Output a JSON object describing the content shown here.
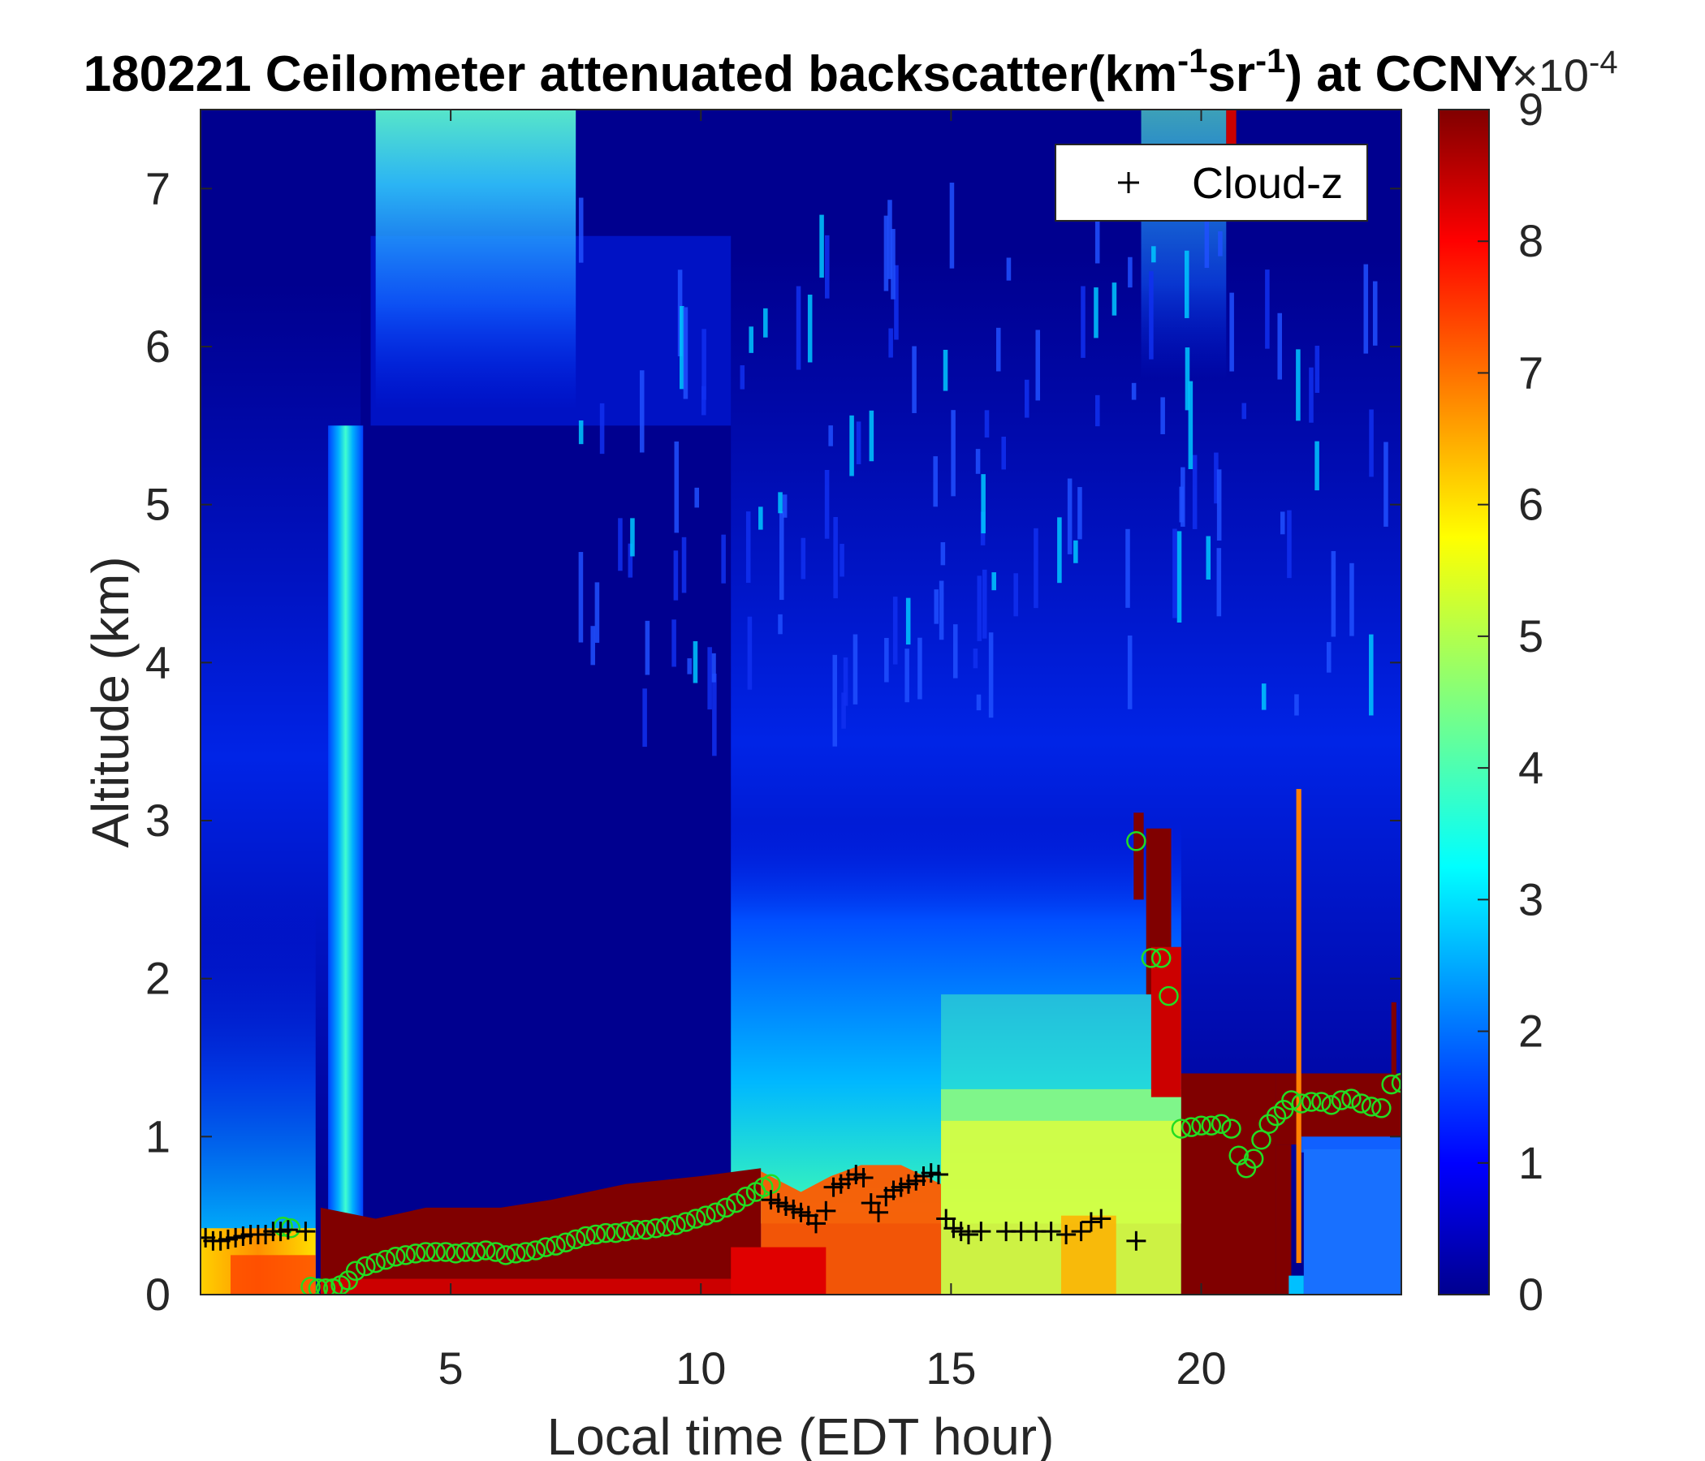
{
  "chart_data": {
    "type": "heatmap",
    "title": {
      "main": "180221 Ceilometer attenuated backscatter(km",
      "sup1": "-1",
      "mid": "sr",
      "sup2": "-1",
      "tail": ") at CCNY"
    },
    "xlabel": "Local time (EDT hour)",
    "ylabel": "Altitude (km)",
    "xlim": [
      0,
      24
    ],
    "ylim": [
      0,
      7.5
    ],
    "xticks": [
      "5",
      "10",
      "15",
      "20"
    ],
    "yticks": [
      "0",
      "1",
      "2",
      "3",
      "4",
      "5",
      "6",
      "7"
    ],
    "colorbar": {
      "range": [
        0,
        9
      ],
      "ticks": [
        "0",
        "1",
        "2",
        "3",
        "4",
        "5",
        "6",
        "7",
        "8",
        "9"
      ],
      "multiplier": "×10",
      "exponent": "-4",
      "colormap": "jet"
    },
    "grid": false,
    "legend": {
      "position": "top-right",
      "entries": [
        {
          "name": "Cloud-z",
          "marker": "+",
          "color": "#000000"
        }
      ]
    },
    "cloud_z": {
      "name": "Cloud-z",
      "x": [
        0.1,
        0.25,
        0.4,
        0.55,
        0.7,
        0.85,
        1.0,
        1.15,
        1.3,
        1.45,
        1.6,
        1.75,
        2.1,
        11.4,
        11.55,
        11.7,
        11.85,
        12.0,
        12.15,
        12.3,
        12.5,
        12.65,
        12.8,
        12.95,
        13.1,
        13.25,
        13.4,
        13.55,
        13.7,
        13.85,
        14.0,
        14.15,
        14.3,
        14.45,
        14.6,
        14.75,
        14.9,
        15.05,
        15.2,
        15.35,
        15.6,
        16.1,
        16.4,
        16.7,
        17.0,
        17.3,
        17.6,
        17.8,
        18.0,
        18.7
      ],
      "y": [
        0.36,
        0.34,
        0.34,
        0.35,
        0.36,
        0.37,
        0.38,
        0.38,
        0.38,
        0.4,
        0.4,
        0.41,
        0.4,
        0.6,
        0.58,
        0.56,
        0.54,
        0.52,
        0.5,
        0.45,
        0.53,
        0.68,
        0.7,
        0.73,
        0.76,
        0.74,
        0.58,
        0.52,
        0.62,
        0.66,
        0.68,
        0.7,
        0.72,
        0.75,
        0.77,
        0.76,
        0.48,
        0.42,
        0.4,
        0.38,
        0.4,
        0.4,
        0.4,
        0.4,
        0.4,
        0.38,
        0.4,
        0.46,
        0.48,
        0.34
      ]
    },
    "green_circles": {
      "color": "#22dd22",
      "x": [
        1.65,
        1.8,
        2.2,
        2.35,
        2.5,
        2.65,
        2.8,
        2.95,
        3.1,
        3.3,
        3.5,
        3.7,
        3.9,
        4.1,
        4.3,
        4.5,
        4.7,
        4.9,
        5.1,
        5.3,
        5.5,
        5.7,
        5.9,
        6.1,
        6.3,
        6.5,
        6.7,
        6.9,
        7.1,
        7.3,
        7.5,
        7.7,
        7.9,
        8.1,
        8.3,
        8.5,
        8.7,
        8.9,
        9.1,
        9.3,
        9.5,
        9.7,
        9.9,
        10.1,
        10.3,
        10.5,
        10.7,
        10.9,
        11.1,
        11.25,
        11.4,
        18.7,
        19.0,
        19.2,
        19.35,
        19.6,
        19.8,
        20.0,
        20.2,
        20.4,
        20.6,
        20.75,
        20.9,
        21.05,
        21.2,
        21.35,
        21.5,
        21.65,
        21.8,
        22.0,
        22.2,
        22.4,
        22.6,
        22.8,
        23.0,
        23.2,
        23.4,
        23.6,
        23.8,
        24.0
      ],
      "y": [
        0.43,
        0.42,
        0.05,
        0.04,
        0.04,
        0.04,
        0.06,
        0.09,
        0.15,
        0.18,
        0.2,
        0.22,
        0.24,
        0.25,
        0.26,
        0.27,
        0.27,
        0.27,
        0.26,
        0.27,
        0.27,
        0.28,
        0.27,
        0.25,
        0.26,
        0.27,
        0.28,
        0.3,
        0.31,
        0.33,
        0.35,
        0.37,
        0.38,
        0.39,
        0.39,
        0.4,
        0.41,
        0.41,
        0.42,
        0.43,
        0.44,
        0.46,
        0.48,
        0.5,
        0.52,
        0.55,
        0.58,
        0.62,
        0.65,
        0.68,
        0.7,
        2.87,
        2.13,
        2.13,
        1.89,
        1.05,
        1.06,
        1.07,
        1.07,
        1.08,
        1.05,
        0.88,
        0.8,
        0.86,
        0.98,
        1.08,
        1.13,
        1.17,
        1.23,
        1.21,
        1.22,
        1.22,
        1.2,
        1.23,
        1.24,
        1.21,
        1.19,
        1.18,
        1.33,
        1.34
      ]
    }
  }
}
